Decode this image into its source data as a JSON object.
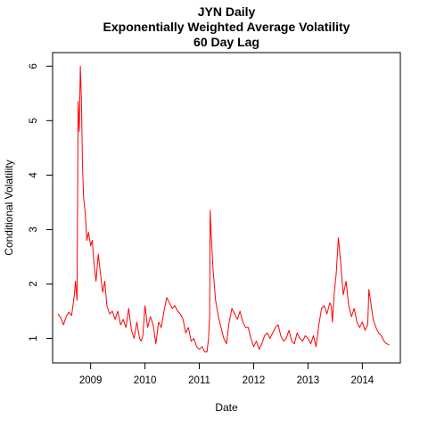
{
  "chart_data": {
    "type": "line",
    "title": [
      "JYN Daily",
      "Exponentially Weighted Average Volatility",
      "60 Day Lag"
    ],
    "xlabel": "Date",
    "ylabel": "Conditional Volatility",
    "x_ticks": [
      "2009",
      "2010",
      "2011",
      "2012",
      "2013",
      "2014"
    ],
    "y_ticks": [
      1,
      2,
      3,
      4,
      5,
      6
    ],
    "xlim": [
      2008.3,
      2014.7
    ],
    "ylim": [
      0.55,
      6.25
    ],
    "grid": false,
    "legend": "none",
    "series_color": "#ff0000",
    "series": [
      {
        "x": [
          2008.4,
          2008.45,
          2008.5,
          2008.55,
          2008.6,
          2008.65,
          2008.7,
          2008.72,
          2008.75,
          2008.77,
          2008.79,
          2008.81,
          2008.83,
          2008.85,
          2008.87,
          2008.9,
          2008.93,
          2008.96,
          2009.0,
          2009.03,
          2009.06,
          2009.1,
          2009.14,
          2009.18,
          2009.22,
          2009.26,
          2009.3,
          2009.35,
          2009.4,
          2009.45,
          2009.5,
          2009.55,
          2009.6,
          2009.65,
          2009.7,
          2009.75,
          2009.8,
          2009.85,
          2009.9,
          2009.93,
          2009.96,
          2010.0,
          2010.05,
          2010.1,
          2010.15,
          2010.2,
          2010.25,
          2010.3,
          2010.35,
          2010.4,
          2010.45,
          2010.5,
          2010.55,
          2010.6,
          2010.65,
          2010.7,
          2010.75,
          2010.8,
          2010.85,
          2010.9,
          2010.95,
          2011.0,
          2011.05,
          2011.1,
          2011.14,
          2011.17,
          2011.19,
          2011.2,
          2011.22,
          2011.25,
          2011.3,
          2011.35,
          2011.4,
          2011.45,
          2011.5,
          2011.55,
          2011.6,
          2011.65,
          2011.7,
          2011.75,
          2011.8,
          2011.85,
          2011.9,
          2011.95,
          2012.0,
          2012.05,
          2012.1,
          2012.15,
          2012.2,
          2012.25,
          2012.3,
          2012.35,
          2012.4,
          2012.45,
          2012.5,
          2012.55,
          2012.6,
          2012.65,
          2012.7,
          2012.75,
          2012.8,
          2012.85,
          2012.9,
          2012.95,
          2013.0,
          2013.05,
          2013.1,
          2013.15,
          2013.2,
          2013.25,
          2013.3,
          2013.35,
          2013.4,
          2013.43,
          2013.45,
          2013.48,
          2013.52,
          2013.56,
          2013.6,
          2013.65,
          2013.7,
          2013.75,
          2013.8,
          2013.85,
          2013.9,
          2013.95,
          2014.0,
          2014.05,
          2014.1,
          2014.12,
          2014.15,
          2014.2,
          2014.25,
          2014.3,
          2014.35,
          2014.4,
          2014.45,
          2014.5
        ],
        "y": [
          1.45,
          1.38,
          1.25,
          1.4,
          1.48,
          1.42,
          1.8,
          2.05,
          1.7,
          5.35,
          4.8,
          6.0,
          5.4,
          4.2,
          3.6,
          3.3,
          2.8,
          2.95,
          2.7,
          2.8,
          2.4,
          2.05,
          2.55,
          2.2,
          1.85,
          2.05,
          1.6,
          1.45,
          1.5,
          1.35,
          1.5,
          1.25,
          1.35,
          1.2,
          1.55,
          1.15,
          1.0,
          1.3,
          1.0,
          0.95,
          1.05,
          1.6,
          1.2,
          1.4,
          1.25,
          0.9,
          1.3,
          1.2,
          1.5,
          1.75,
          1.65,
          1.55,
          1.6,
          1.5,
          1.45,
          1.35,
          1.1,
          1.2,
          0.95,
          1.0,
          0.85,
          0.8,
          0.85,
          0.75,
          0.75,
          1.0,
          1.4,
          3.35,
          2.9,
          2.3,
          1.7,
          1.4,
          1.2,
          1.0,
          0.9,
          1.3,
          1.55,
          1.45,
          1.35,
          1.5,
          1.3,
          1.2,
          1.2,
          1.0,
          0.85,
          0.95,
          0.8,
          0.9,
          1.05,
          1.1,
          1.0,
          1.1,
          1.2,
          1.25,
          1.05,
          0.95,
          1.0,
          1.15,
          0.95,
          0.9,
          1.1,
          1.0,
          0.95,
          1.05,
          1.0,
          0.9,
          1.05,
          0.85,
          1.25,
          1.55,
          1.6,
          1.45,
          1.65,
          1.6,
          1.3,
          1.8,
          2.2,
          2.85,
          2.4,
          1.8,
          2.05,
          1.6,
          1.4,
          1.55,
          1.3,
          1.2,
          1.3,
          1.15,
          1.25,
          1.9,
          1.7,
          1.35,
          1.2,
          1.1,
          1.05,
          0.95,
          0.9,
          0.88
        ]
      }
    ]
  }
}
